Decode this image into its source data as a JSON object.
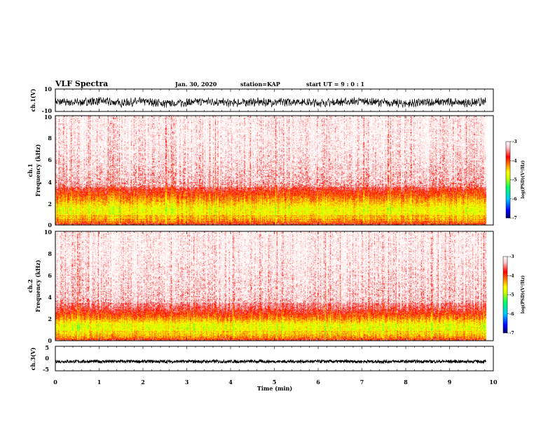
{
  "header": {
    "title": "VLF Spectra",
    "date": "Jan. 30, 2020",
    "station": "station=KAP",
    "start_ut": "start UT =  9 : 0  : 1"
  },
  "colors": {
    "background": "#ffffff",
    "trace": "#000000",
    "colormap": [
      "#000080",
      "#0000ff",
      "#00c8ff",
      "#00ff64",
      "#c8ff00",
      "#ffff00",
      "#ff8000",
      "#ff0000",
      "#ffc8c8",
      "#ffffff"
    ]
  },
  "chart_data": [
    {
      "type": "line",
      "ylabel": "ch.1(V)",
      "ylim": [
        -10,
        10
      ],
      "yticks": [
        "10",
        "-10"
      ],
      "xlim": [
        0,
        10
      ],
      "data_extent_min": [
        0,
        9.83
      ],
      "series": [
        {
          "x": [
            0,
            0.5,
            1,
            1.5,
            2,
            2.5,
            3,
            3.5,
            4,
            4.5,
            5,
            5.5,
            6,
            6.5,
            7,
            7.5,
            8,
            8.5,
            9,
            9.5,
            9.83
          ],
          "y": [
            -1.5,
            -2,
            -0.5,
            -2.5,
            -1,
            -3,
            -2,
            -1,
            -2.5,
            -1.5,
            -2,
            -1,
            -2.5,
            -1.5,
            -1,
            -2,
            -3,
            -2,
            -1.5,
            -2.5,
            -1.5
          ]
        }
      ]
    },
    {
      "type": "heatmap",
      "ylabel": "ch.1\nFrequency (kHz)",
      "ylim": [
        0,
        10
      ],
      "yticks": [
        "0",
        "2",
        "4",
        "6",
        "8",
        "10"
      ],
      "xlim": [
        0,
        10
      ],
      "data_extent_min": [
        0,
        9.83
      ],
      "colorbar": {
        "label": "log(PSD)(V²/Hz)",
        "range": [
          -7,
          -3
        ],
        "ticks": [
          "-3",
          "-4",
          "-5",
          "-6",
          "-7"
        ]
      },
      "profile": {
        "freq_khz": [
          0,
          0.5,
          1,
          1.5,
          2,
          2.5,
          3,
          3.5,
          4,
          6,
          8,
          10
        ],
        "log_psd": [
          -3.8,
          -4.6,
          -4.8,
          -4.9,
          -4.6,
          -4.3,
          -4.0,
          -3.7,
          -3.5,
          -3.3,
          -3.2,
          -3.2
        ]
      }
    },
    {
      "type": "heatmap",
      "ylabel": "ch.2\nFrequency (kHz)",
      "ylim": [
        0,
        10
      ],
      "yticks": [
        "0",
        "2",
        "4",
        "6",
        "8",
        "10"
      ],
      "xlim": [
        0,
        10
      ],
      "data_extent_min": [
        0,
        9.83
      ],
      "colorbar": {
        "label": "log(PSD)(V²/Hz)",
        "range": [
          -7,
          -3
        ],
        "ticks": [
          "-3",
          "-4",
          "-5",
          "-6",
          "-7"
        ]
      },
      "profile": {
        "freq_khz": [
          0,
          0.5,
          1,
          1.5,
          2,
          2.5,
          3,
          3.5,
          4,
          6,
          8,
          10
        ],
        "log_psd": [
          -3.8,
          -4.7,
          -4.9,
          -4.9,
          -4.4,
          -4.0,
          -3.7,
          -3.5,
          -3.4,
          -3.3,
          -3.2,
          -3.2
        ]
      }
    },
    {
      "type": "line",
      "ylabel": "ch.3(V)",
      "ylim": [
        -5,
        5
      ],
      "yticks": [
        "5",
        "0",
        "-5"
      ],
      "xlim": [
        0,
        10
      ],
      "data_extent_min": [
        0,
        9.83
      ],
      "series": [
        {
          "x": [
            0,
            9.83
          ],
          "y": [
            -1.2,
            -1.2
          ],
          "spread": 0.6
        }
      ]
    }
  ],
  "xaxis": {
    "label": "Time (min)",
    "ticks": [
      "0",
      "1",
      "2",
      "3",
      "4",
      "5",
      "6",
      "7",
      "8",
      "9",
      "10"
    ]
  }
}
